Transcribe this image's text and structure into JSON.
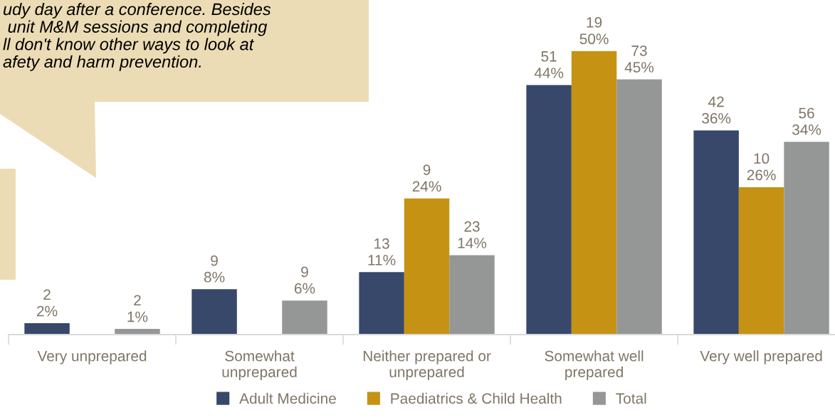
{
  "chart_data": {
    "type": "bar",
    "categories": [
      "Very unprepared",
      "Somewhat\nunprepared",
      "Neither prepared or\nunprepared",
      "Somewhat well\nprepared",
      "Very well prepared"
    ],
    "series": [
      {
        "name": "Adult Medicine",
        "color": "#37486a",
        "values": [
          2,
          8,
          11,
          44,
          36
        ],
        "value_labels": [
          "2\n2%",
          "9\n8%",
          "13\n11%",
          "51\n44%",
          "42\n36%"
        ]
      },
      {
        "name": "Paediatrics & Child Health",
        "color": "#c59214",
        "values": [
          null,
          null,
          24,
          50,
          26
        ],
        "value_labels": [
          null,
          null,
          "9\n24%",
          "19\n50%",
          "10\n26%"
        ]
      },
      {
        "name": "Total",
        "color": "#959696",
        "values": [
          1,
          6,
          14,
          45,
          34
        ],
        "value_labels": [
          "2\n1%",
          "9\n6%",
          "23\n14%",
          "73\n45%",
          "56\n34%"
        ]
      }
    ],
    "annotations": [
      "udy day after a conference. Besides\n unit M&M sessions and completing\nll don't know other ways to look at\nafety and harm prevention."
    ],
    "legend": "bottom",
    "grid": false
  }
}
